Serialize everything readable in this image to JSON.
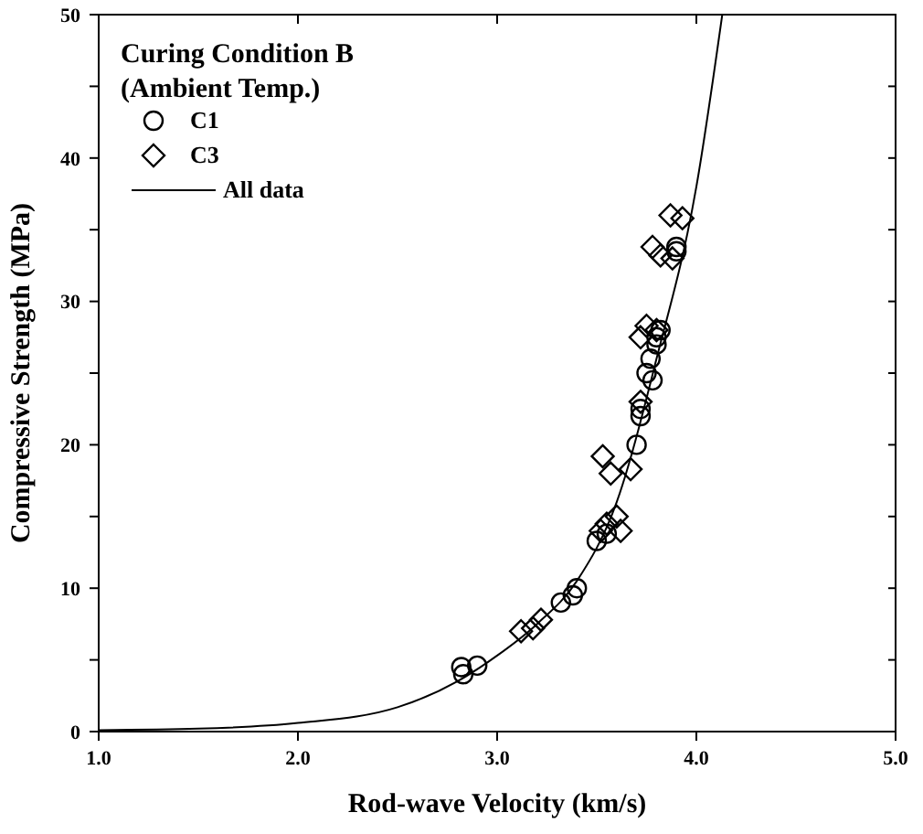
{
  "chart_data": {
    "type": "scatter",
    "xlabel": "Rod-wave Velocity (km/s)",
    "ylabel": "Compressive Strength (MPa)",
    "legend_title": "Curing Condition B\n(Ambient Temp.)",
    "legend": "top left",
    "grid": false,
    "xlim": [
      1.0,
      5.0
    ],
    "xticks": [
      {
        "value": 1,
        "label": "1.0"
      },
      {
        "value": 2,
        "label": "2.0"
      },
      {
        "value": 3,
        "label": "3.0"
      },
      {
        "value": 4,
        "label": "4.0"
      },
      {
        "value": 5,
        "label": "5.0"
      }
    ],
    "ylim": [
      0,
      50
    ],
    "yticks": [
      0,
      {
        "value": 5,
        "label": null
      },
      10,
      {
        "value": 15,
        "label": null
      },
      20,
      {
        "value": 25,
        "label": null
      },
      30,
      {
        "value": 35,
        "label": null
      },
      40,
      {
        "value": 45,
        "label": null
      },
      50
    ],
    "series": [
      {
        "name": "C1",
        "marker": "circle",
        "color": "#000000",
        "x": [
          2.82,
          2.83,
          2.9,
          3.32,
          3.38,
          3.4,
          3.5,
          3.55,
          3.7,
          3.72,
          3.72,
          3.75,
          3.78,
          3.77,
          3.8,
          3.8,
          3.82,
          3.9,
          3.9
        ],
        "values": [
          4.5,
          4.0,
          4.6,
          9,
          9.5,
          10,
          13.3,
          13.8,
          20,
          22,
          22.5,
          25,
          24.5,
          26,
          27,
          27.5,
          28,
          33.5,
          33.8
        ]
      },
      {
        "name": "C3",
        "marker": "diamond",
        "color": "#000000",
        "x": [
          3.12,
          3.18,
          3.22,
          3.52,
          3.55,
          3.6,
          3.62,
          3.53,
          3.57,
          3.67,
          3.72,
          3.72,
          3.75,
          3.8,
          3.78,
          3.82,
          3.88,
          3.87,
          3.93
        ],
        "values": [
          7,
          7.2,
          7.8,
          14,
          14.5,
          15,
          14,
          19.2,
          18,
          18.3,
          23,
          27.5,
          28.3,
          28,
          33.8,
          33.2,
          33,
          36,
          35.8
        ]
      },
      {
        "name": "All data",
        "type": "line",
        "line_style": "solid",
        "color": "#000000",
        "x": [
          1.0,
          1.5,
          2.0,
          2.5,
          2.8,
          3.0,
          3.2,
          3.4,
          3.6,
          3.8,
          4.0,
          4.13
        ],
        "values": [
          0.1,
          0.2,
          0.6,
          1.7,
          3.5,
          5.3,
          7.5,
          10.5,
          16,
          26,
          38,
          50
        ]
      }
    ]
  }
}
